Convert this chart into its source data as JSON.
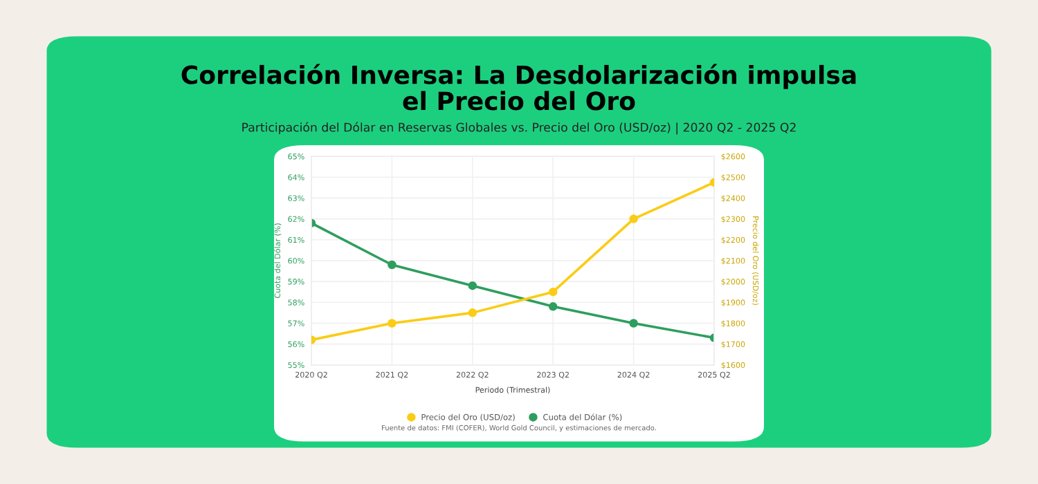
{
  "chart_data": {
    "type": "line",
    "title": "Correlación Inversa: La Desdolarización impulsa\nel Precio del Oro",
    "subtitle": "Participación del Dólar en Reservas Globales vs. Precio del Oro (USD/oz) | 2020 Q2 - 2025 Q2",
    "xlabel": "Periodo (Trimestral)",
    "ylabel": "Cuota del Dólar (%)",
    "y2label": "Precio del Oro (USD/oz)",
    "categories": [
      "2020 Q2",
      "2021 Q2",
      "2022 Q2",
      "2023 Q2",
      "2024 Q2",
      "2025 Q2"
    ],
    "series": [
      {
        "name": "Precio del Oro (USD/oz)",
        "color": "#facc15",
        "axis": "y2",
        "values": [
          1720,
          1800,
          1850,
          1950,
          2300,
          2475
        ]
      },
      {
        "name": "Cuota del Dólar (%)",
        "color": "#2e9e5e",
        "values": [
          61.8,
          59.8,
          58.8,
          57.8,
          57.0,
          56.3
        ]
      }
    ],
    "ylim": [
      55,
      65
    ],
    "yticks": [
      {
        "value": 55,
        "label": "55%"
      },
      {
        "value": 56,
        "label": "56%"
      },
      {
        "value": 57,
        "label": "57%"
      },
      {
        "value": 58,
        "label": "58%"
      },
      {
        "value": 59,
        "label": "59%"
      },
      {
        "value": 60,
        "label": "60%"
      },
      {
        "value": 61,
        "label": "61%"
      },
      {
        "value": 62,
        "label": "62%"
      },
      {
        "value": 63,
        "label": "63%"
      },
      {
        "value": 64,
        "label": "64%"
      },
      {
        "value": 65,
        "label": "65%"
      }
    ],
    "y2lim": [
      1600,
      2600
    ],
    "y2ticks": [
      {
        "value": 1600,
        "label": "$1600"
      },
      {
        "value": 1700,
        "label": "$1700"
      },
      {
        "value": 1800,
        "label": "$1800"
      },
      {
        "value": 1900,
        "label": "$1900"
      },
      {
        "value": 2000,
        "label": "$2000"
      },
      {
        "value": 2100,
        "label": "$2100"
      },
      {
        "value": 2200,
        "label": "$2200"
      },
      {
        "value": 2300,
        "label": "$2300"
      },
      {
        "value": 2400,
        "label": "$2400"
      },
      {
        "value": 2500,
        "label": "$2500"
      },
      {
        "value": 2600,
        "label": "$2600"
      }
    ],
    "annotations": [
      "Fuente de datos: FMI (COFER), World Gold Council, y estimaciones de mercado."
    ],
    "grid": true,
    "legend": "bottom",
    "marker": "circle",
    "line_style": "solid"
  }
}
